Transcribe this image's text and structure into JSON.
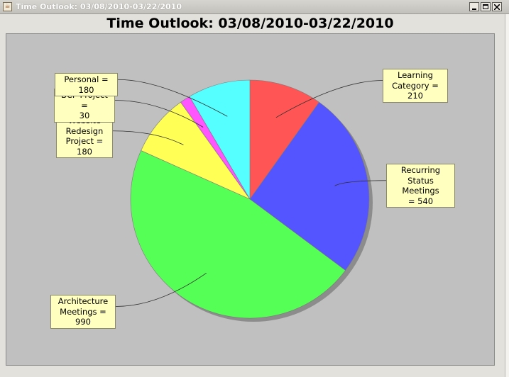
{
  "window": {
    "title": "Time Outlook: 03/08/2010-03/22/2010",
    "icon": "java-cup-icon"
  },
  "chart_data": {
    "type": "pie",
    "title": "Time Outlook: 03/08/2010-03/22/2010",
    "slices": [
      {
        "label_lines": [
          "Learning",
          "Category = 210"
        ],
        "category": "Learning Category",
        "value": 210,
        "color": "#ff5555"
      },
      {
        "label_lines": [
          "Recurring",
          "Status Meetings",
          "= 540"
        ],
        "category": "Recurring Status Meetings",
        "value": 540,
        "color": "#5555ff"
      },
      {
        "label_lines": [
          "Architecture",
          "Meetings = 990"
        ],
        "category": "Architecture Meetings",
        "value": 990,
        "color": "#55ff55"
      },
      {
        "label_lines": [
          "Website",
          "Redesign",
          "Project = 180"
        ],
        "category": "Website Redesign Project",
        "value": 180,
        "color": "#ffff55"
      },
      {
        "label_lines": [
          "BCP Project =",
          "30"
        ],
        "category": "BCP Project",
        "value": 30,
        "color": "#ff55ff"
      },
      {
        "label_lines": [
          "Personal = 180"
        ],
        "category": "Personal",
        "value": 180,
        "color": "#55ffff"
      }
    ],
    "start_angle": "12 o'clock",
    "direction": "clockwise",
    "background": "#c0c0c0",
    "label_background": "#ffffc0",
    "legend": "none"
  }
}
